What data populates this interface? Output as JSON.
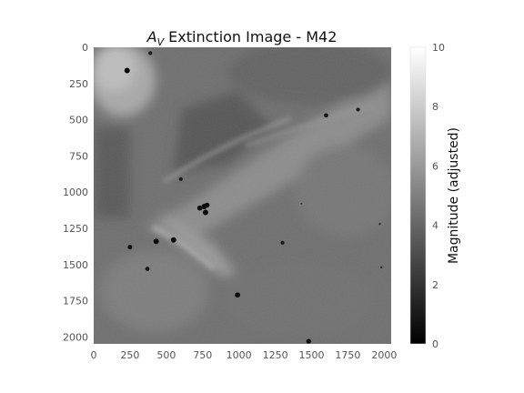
{
  "chart_data": {
    "type": "heatmap",
    "title_prefix_symbol": "A",
    "title_prefix_subscript": "V",
    "title_rest": " Extinction Image - M42",
    "colormap": "gray",
    "grid": false,
    "x_axis": {
      "label": "",
      "range": [
        0,
        2048
      ],
      "ticks": [
        0,
        250,
        500,
        750,
        1000,
        1250,
        1500,
        1750,
        2000
      ],
      "tick_labels": [
        "0",
        "250",
        "500",
        "750",
        "1000",
        "1250",
        "1500",
        "1750",
        "2000"
      ]
    },
    "y_axis": {
      "label": "",
      "range": [
        0,
        2048
      ],
      "inverted": true,
      "ticks": [
        0,
        250,
        500,
        750,
        1000,
        1250,
        1500,
        1750,
        2000
      ],
      "tick_labels": [
        "0",
        "250",
        "500",
        "750",
        "1000",
        "1250",
        "1500",
        "1750",
        "2000"
      ]
    },
    "colorbar": {
      "label": "Magnitude (adjusted)",
      "range": [
        0,
        10
      ],
      "ticks": [
        0,
        2,
        4,
        6,
        8,
        10
      ],
      "tick_labels": [
        "0",
        "2",
        "4",
        "6",
        "8",
        "10"
      ]
    },
    "point_sources": [
      {
        "x": 230,
        "y": 160,
        "mag": 0.2
      },
      {
        "x": 390,
        "y": 40,
        "mag": 1.0
      },
      {
        "x": 1600,
        "y": 470,
        "mag": 0.8
      },
      {
        "x": 1820,
        "y": 430,
        "mag": 1.0
      },
      {
        "x": 600,
        "y": 910,
        "mag": 1.0
      },
      {
        "x": 730,
        "y": 1110,
        "mag": 0.4
      },
      {
        "x": 760,
        "y": 1100,
        "mag": 0.2
      },
      {
        "x": 770,
        "y": 1140,
        "mag": 0.2
      },
      {
        "x": 780,
        "y": 1090,
        "mag": 0.4
      },
      {
        "x": 250,
        "y": 1380,
        "mag": 0.6
      },
      {
        "x": 430,
        "y": 1340,
        "mag": 0.2
      },
      {
        "x": 550,
        "y": 1330,
        "mag": 0.2
      },
      {
        "x": 370,
        "y": 1530,
        "mag": 0.8
      },
      {
        "x": 1300,
        "y": 1350,
        "mag": 1.0
      },
      {
        "x": 990,
        "y": 1710,
        "mag": 0.3
      },
      {
        "x": 1480,
        "y": 2030,
        "mag": 0.5
      },
      {
        "x": 1980,
        "y": 1520,
        "mag": 1.8
      },
      {
        "x": 1970,
        "y": 1220,
        "mag": 1.8
      },
      {
        "x": 1430,
        "y": 1080,
        "mag": 2.0
      }
    ]
  }
}
